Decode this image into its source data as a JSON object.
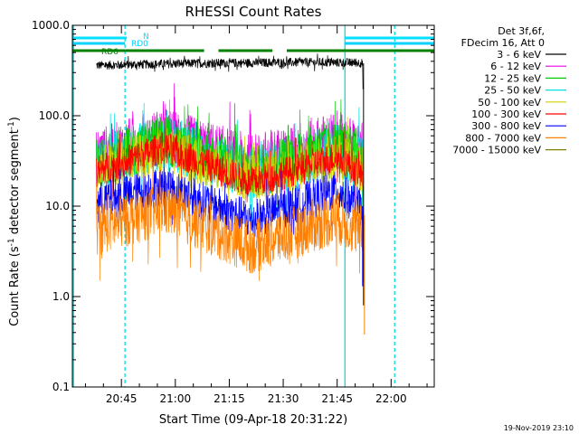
{
  "chart_data": {
    "type": "line",
    "title": "RHESSI Count Rates",
    "xlabel": "Start Time (09-Apr-18 20:31:22)",
    "ylabel_main": "Count Rate (s",
    "ylabel_sup1": "-1",
    "ylabel_mid": " detector segment",
    "ylabel_sup2": "-1",
    "ylabel_end": ")",
    "yscale": "log",
    "xlim": [
      "20:31:22",
      "22:12:00"
    ],
    "ylim": [
      0.1,
      1000
    ],
    "x_ticks": [
      "20:45",
      "21:00",
      "21:15",
      "21:30",
      "21:45",
      "22:00"
    ],
    "y_ticks": [
      "0.1",
      "1.0",
      "10.0",
      "100.0",
      "1000.0"
    ],
    "data_start": "20:38:00",
    "data_end": "21:52:20",
    "legend": {
      "header": [
        "Det 3f,6f,",
        "FDecim 16, Att 0"
      ],
      "position": "right"
    },
    "series": [
      {
        "name": "3 - 6 keV",
        "color": "#000000",
        "values": [
          [
            20.63,
            360
          ],
          [
            20.85,
            370
          ],
          [
            21.1,
            380
          ],
          [
            21.35,
            385
          ],
          [
            21.6,
            390
          ],
          [
            21.85,
            385
          ]
        ]
      },
      {
        "name": "6 - 12 keV",
        "color": "#e600e6",
        "values": [
          [
            20.63,
            35
          ],
          [
            20.95,
            60
          ],
          [
            21.35,
            30
          ],
          [
            21.75,
            55
          ],
          [
            21.87,
            40
          ]
        ]
      },
      {
        "name": "12 - 25 keV",
        "color": "#00d000",
        "values": [
          [
            20.63,
            30
          ],
          [
            20.95,
            55
          ],
          [
            21.35,
            26
          ],
          [
            21.75,
            48
          ],
          [
            21.87,
            35
          ]
        ]
      },
      {
        "name": "25 - 50 keV",
        "color": "#00e0e0",
        "values": [
          [
            20.63,
            28
          ],
          [
            20.95,
            52
          ],
          [
            21.35,
            23
          ],
          [
            21.75,
            42
          ],
          [
            21.87,
            30
          ]
        ]
      },
      {
        "name": "50 - 100 keV",
        "color": "#d0d000",
        "values": [
          [
            20.63,
            25
          ],
          [
            20.95,
            42
          ],
          [
            21.35,
            20
          ],
          [
            21.75,
            36
          ],
          [
            21.87,
            25
          ]
        ]
      },
      {
        "name": "100 - 300 keV",
        "color": "#ff0000",
        "values": [
          [
            20.63,
            24
          ],
          [
            20.95,
            45
          ],
          [
            21.35,
            18
          ],
          [
            21.75,
            35
          ],
          [
            21.87,
            22
          ]
        ]
      },
      {
        "name": "300 - 800 keV",
        "color": "#0000ff",
        "values": [
          [
            20.63,
            11
          ],
          [
            20.95,
            17
          ],
          [
            21.35,
            7
          ],
          [
            21.75,
            15
          ],
          [
            21.87,
            9
          ]
        ]
      },
      {
        "name": "800 - 7000 keV",
        "color": "#ff8000",
        "values": [
          [
            20.63,
            5.5
          ],
          [
            20.95,
            9.5
          ],
          [
            21.35,
            3.5
          ],
          [
            21.75,
            7.5
          ],
          [
            21.87,
            5
          ]
        ]
      },
      {
        "name": "7000 - 15000 keV",
        "color": "#808000",
        "values": []
      }
    ],
    "attenuator_bars": [
      {
        "label": "N",
        "color": "#00e0ff",
        "segments": [
          [
            "20:31:22",
            "20:46:30"
          ],
          [
            "21:47:00",
            "22:12:00"
          ]
        ]
      },
      {
        "label": "RD0",
        "color": "#00d0ff",
        "segments": [
          [
            "20:31:22",
            "20:46:00"
          ],
          [
            "21:47:00",
            "22:12:00"
          ]
        ]
      },
      {
        "label": "RD6",
        "color": "#008000",
        "segments": [
          [
            "20:31:22",
            "20:46:00"
          ],
          [
            "20:46:00",
            "21:08:00"
          ],
          [
            "21:12:00",
            "21:27:00"
          ],
          [
            "21:31:00",
            "21:52:00"
          ],
          [
            "21:52:00",
            "22:12:00"
          ]
        ]
      }
    ],
    "vertical_lines": [
      {
        "time": "20:31:40",
        "style": "solid",
        "color": "#00e0e0"
      },
      {
        "time": "20:46:00",
        "style": "dashed",
        "color": "#00e0e0"
      },
      {
        "time": "21:47:10",
        "style": "solid",
        "color": "#00e0e0"
      },
      {
        "time": "22:01:00",
        "style": "dashed",
        "color": "#00e0e0"
      }
    ],
    "grid": false
  },
  "footer_timestamp": "19-Nov-2019 23:10"
}
